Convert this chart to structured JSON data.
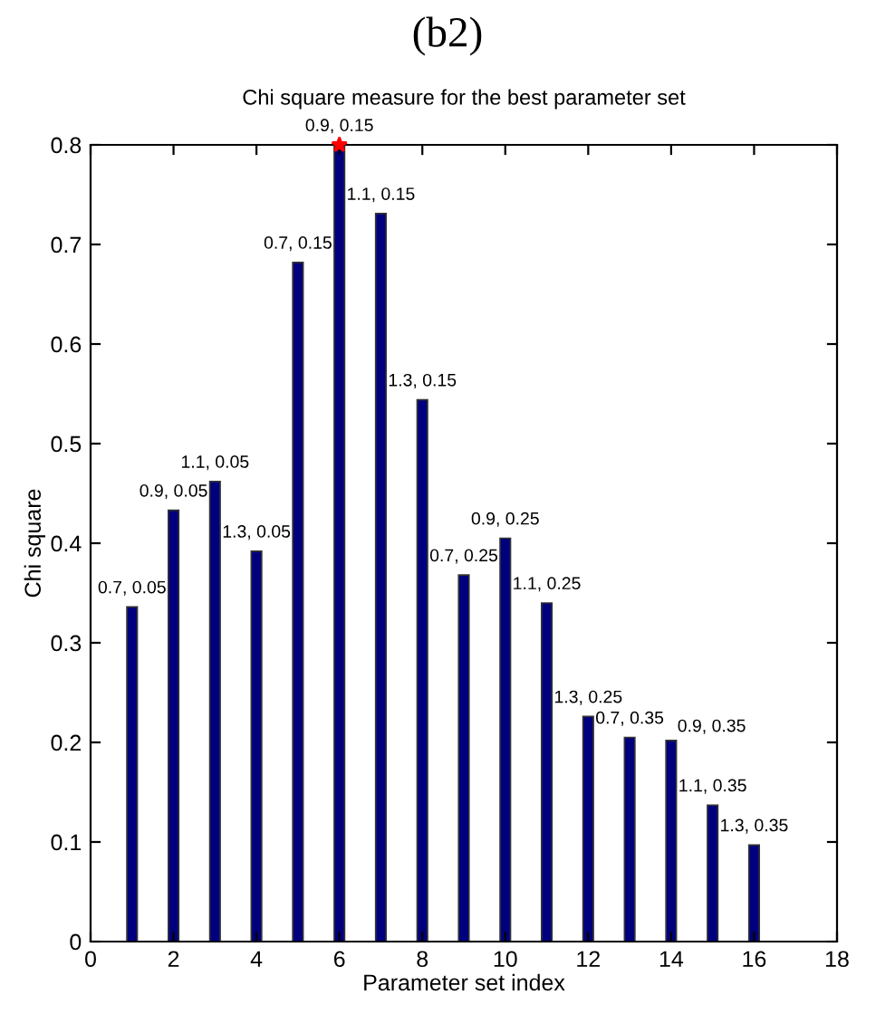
{
  "chart_data": {
    "type": "bar",
    "title": "(b2)",
    "subtitle": "Chi square measure for the best parameter set",
    "xlabel": "Parameter set index",
    "ylabel": "Chi square",
    "x": [
      1,
      2,
      3,
      4,
      5,
      6,
      7,
      8,
      9,
      10,
      11,
      12,
      13,
      14,
      15,
      16
    ],
    "series": [
      {
        "color": "#00007f",
        "values": [
          0.336,
          0.433,
          0.462,
          0.392,
          0.682,
          0.8,
          0.731,
          0.544,
          0.368,
          0.405,
          0.34,
          0.226,
          0.205,
          0.202,
          0.137,
          0.097
        ]
      },
      {
        "type": "scatter",
        "color": "#ff0000",
        "marker": "star",
        "x": [
          6
        ],
        "values": [
          0.8
        ]
      }
    ],
    "annotations": [
      {
        "text": "0.7, 0.05",
        "x": 1,
        "y": 0.336
      },
      {
        "text": "0.9, 0.05",
        "x": 2,
        "y": 0.433
      },
      {
        "text": "1.1, 0.05",
        "x": 3,
        "y": 0.462
      },
      {
        "text": "1.3, 0.05",
        "x": 4,
        "y": 0.392
      },
      {
        "text": "0.7, 0.15",
        "x": 5,
        "y": 0.682
      },
      {
        "text": "0.9, 0.15",
        "x": 6,
        "y": 0.8
      },
      {
        "text": "1.1, 0.15",
        "x": 7,
        "y": 0.731
      },
      {
        "text": "1.3, 0.15",
        "x": 8,
        "y": 0.544
      },
      {
        "text": "0.7, 0.25",
        "x": 9,
        "y": 0.368
      },
      {
        "text": "0.9, 0.25",
        "x": 10,
        "y": 0.405
      },
      {
        "text": "1.1, 0.25",
        "x": 11,
        "y": 0.34
      },
      {
        "text": "1.3, 0.25",
        "x": 12,
        "y": 0.226
      },
      {
        "text": "0.7, 0.35",
        "x": 13,
        "y": 0.205
      },
      {
        "text": "0.9, 0.35",
        "x": 14,
        "y": 0.202
      },
      {
        "text": "1.1, 0.35",
        "x": 15,
        "y": 0.137
      },
      {
        "text": "1.3, 0.35",
        "x": 16,
        "y": 0.097
      }
    ],
    "xlim": [
      0,
      18
    ],
    "xticks": [
      0,
      2,
      4,
      6,
      8,
      10,
      12,
      14,
      16,
      18
    ],
    "ylim": [
      0,
      0.8
    ],
    "yticks": [
      0,
      0.1,
      0.2,
      0.3,
      0.4,
      0.5,
      0.6,
      0.7,
      0.8
    ],
    "grid": false,
    "legend": false
  }
}
